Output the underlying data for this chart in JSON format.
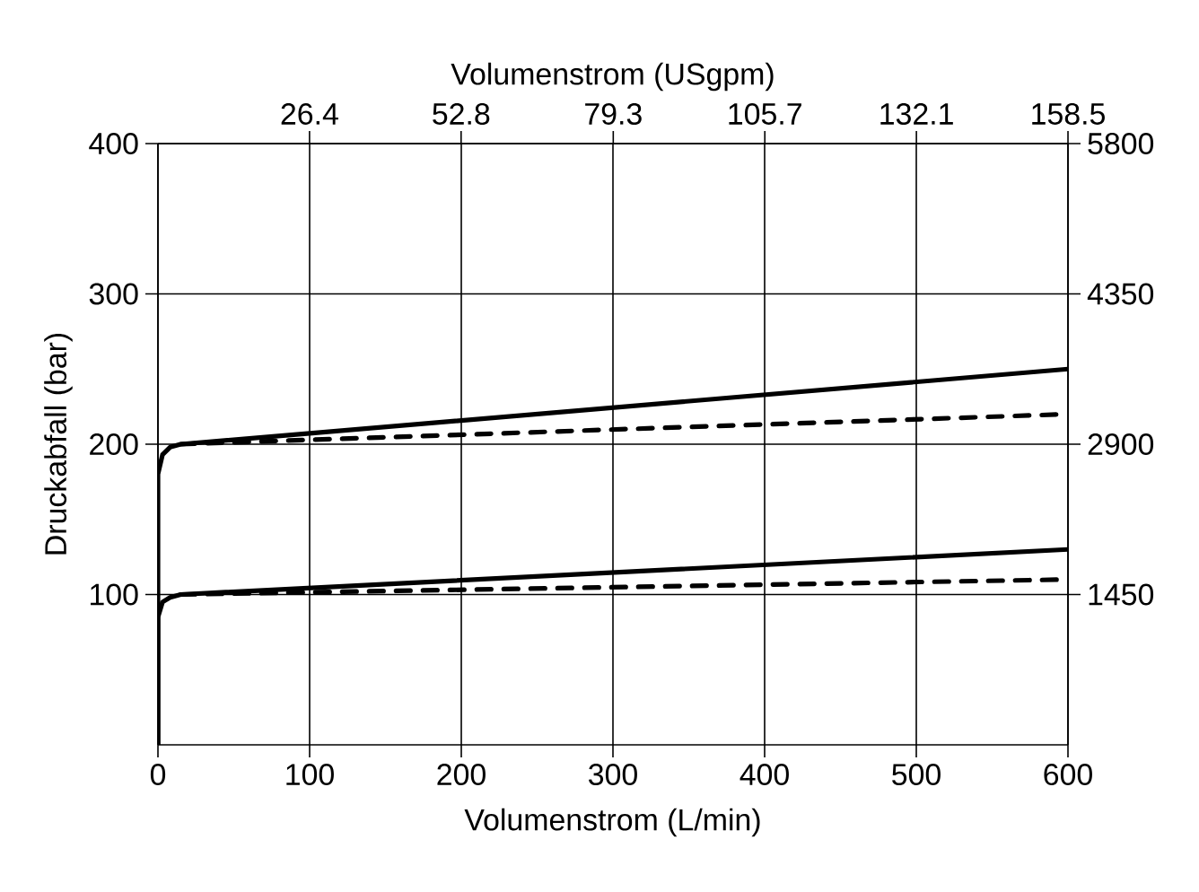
{
  "chart_data": {
    "type": "line",
    "xlabel": "Volumenstrom (L/min)",
    "ylabel": "Druckabfall (bar)",
    "x2label": "Volumenstrom (USgpm)",
    "xlim": [
      0,
      600
    ],
    "ylim": [
      0,
      400
    ],
    "xticks": [
      0,
      100,
      200,
      300,
      400,
      500,
      600
    ],
    "yticks": [
      100,
      200,
      300,
      400
    ],
    "x2lim": [
      0,
      158.5
    ],
    "x2ticks": [
      26.4,
      52.8,
      79.3,
      105.7,
      132.1,
      158.5
    ],
    "y2lim": [
      0,
      5800
    ],
    "y2ticks": [
      1450,
      2900,
      4350,
      5800
    ],
    "grid": true,
    "series": [
      {
        "color": "#000000",
        "line_style": "solid",
        "x": [
          0,
          0,
          3,
          8,
          15,
          600
        ],
        "values": [
          0,
          180,
          193,
          198,
          200,
          250
        ]
      },
      {
        "color": "#000000",
        "line_style": "dashed",
        "x": [
          15,
          600
        ],
        "values": [
          200,
          220
        ]
      },
      {
        "color": "#000000",
        "line_style": "solid",
        "x": [
          0,
          0,
          3,
          8,
          15,
          600
        ],
        "values": [
          0,
          85,
          95,
          98,
          100,
          130
        ]
      },
      {
        "color": "#000000",
        "line_style": "dashed",
        "x": [
          15,
          600
        ],
        "values": [
          100,
          110
        ]
      }
    ]
  }
}
